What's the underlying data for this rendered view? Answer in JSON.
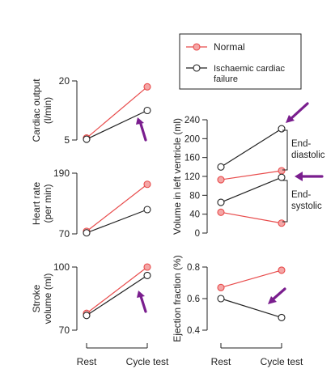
{
  "legend": {
    "items": [
      {
        "label": "Normal",
        "color": "#e84b4b",
        "marker_fill": "#f4a6a6"
      },
      {
        "label": "Ischaemic cardiac failure",
        "color": "#222222",
        "marker_fill": "#ffffff"
      }
    ]
  },
  "annotations": {
    "end_diastolic": "End-diastolic",
    "end_systolic": "End-systolic",
    "arrow_color": "#7a1e8e"
  },
  "chart_data": [
    {
      "id": "cardiac-output",
      "type": "line",
      "ylabel": "Cardiac output (l/min)",
      "ylim": [
        5,
        20
      ],
      "yticks": [
        5,
        20
      ],
      "categories": [
        "Rest",
        "Cycle test"
      ],
      "series": [
        {
          "name": "Normal",
          "values": [
            5.5,
            18.5
          ]
        },
        {
          "name": "Ischaemic cardiac failure",
          "values": [
            5.2,
            12.5
          ]
        }
      ]
    },
    {
      "id": "heart-rate",
      "type": "line",
      "ylabel": "Heart rate (per min)",
      "ylim": [
        70,
        190
      ],
      "yticks": [
        70,
        190
      ],
      "categories": [
        "Rest",
        "Cycle test"
      ],
      "series": [
        {
          "name": "Normal",
          "values": [
            75,
            168
          ]
        },
        {
          "name": "Ischaemic cardiac failure",
          "values": [
            72,
            118
          ]
        }
      ]
    },
    {
      "id": "stroke-volume",
      "type": "line",
      "ylabel": "Stroke volume (ml)",
      "ylim": [
        70,
        100
      ],
      "yticks": [
        70,
        100
      ],
      "categories": [
        "Rest",
        "Cycle test"
      ],
      "xticklabels": [
        "Rest",
        "Cycle test"
      ],
      "series": [
        {
          "name": "Normal",
          "values": [
            78,
            100
          ]
        },
        {
          "name": "Ischaemic cardiac failure",
          "values": [
            77,
            96
          ]
        }
      ]
    },
    {
      "id": "lv-volume",
      "type": "line",
      "ylabel": "Volume in left ventricle (ml)",
      "ylim": [
        0,
        240
      ],
      "yticks": [
        0,
        40,
        80,
        120,
        160,
        200,
        240
      ],
      "categories": [
        "Rest",
        "Cycle test"
      ],
      "series": [
        {
          "name": "Normal end-diastolic",
          "values": [
            113,
            132
          ]
        },
        {
          "name": "Normal end-systolic",
          "values": [
            44,
            21
          ]
        },
        {
          "name": "Ischaemic end-diastolic",
          "values": [
            140,
            221
          ]
        },
        {
          "name": "Ischaemic end-systolic",
          "values": [
            65,
            118
          ]
        }
      ]
    },
    {
      "id": "ejection-fraction",
      "type": "line",
      "ylabel": "Ejection fraction (%)",
      "ylim": [
        0.4,
        0.8
      ],
      "yticks": [
        0.4,
        0.6,
        0.8
      ],
      "categories": [
        "Rest",
        "Cycle test"
      ],
      "xticklabels": [
        "Rest",
        "Cycle test"
      ],
      "series": [
        {
          "name": "Normal",
          "values": [
            0.67,
            0.78
          ]
        },
        {
          "name": "Ischaemic cardiac failure",
          "values": [
            0.6,
            0.48
          ]
        }
      ]
    }
  ]
}
